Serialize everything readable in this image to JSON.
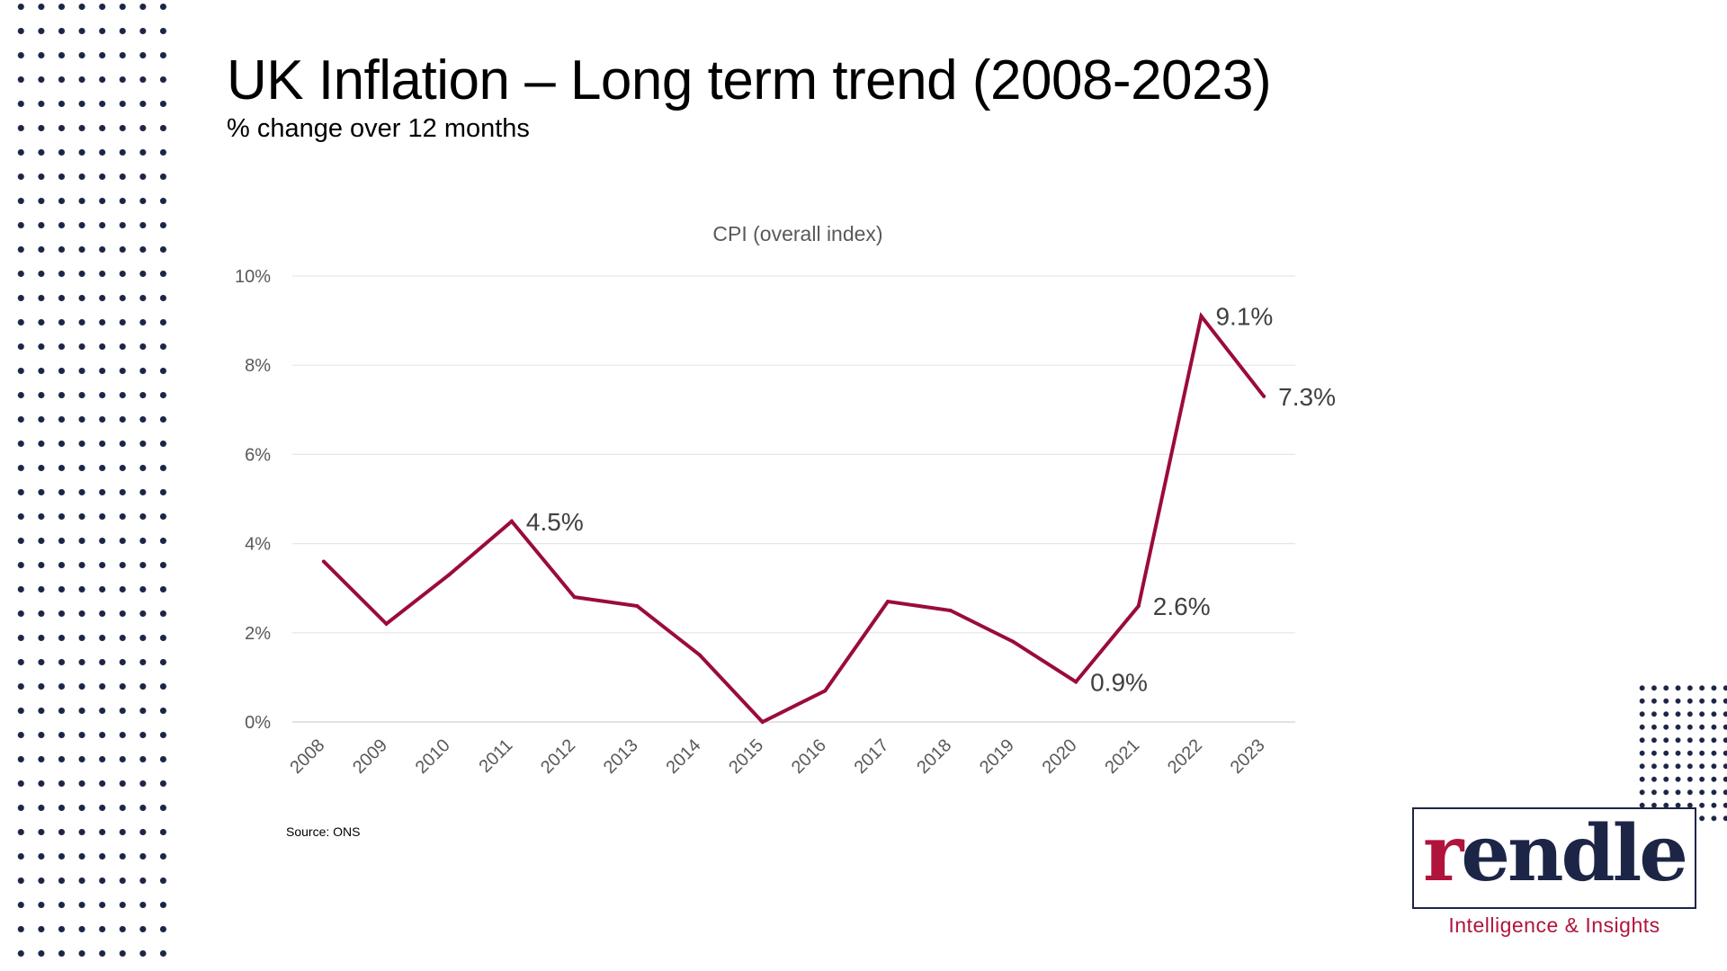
{
  "title": "UK Inflation – Long term trend (2008-2023)",
  "subtitle": "% change over 12 months",
  "source": "Source: ONS",
  "logo": {
    "wordmark": "rendle",
    "tagline": "Intelligence & Insights"
  },
  "colors": {
    "series": "#9b0b3d",
    "brand_navy": "#1d2547",
    "brand_red": "#b0143c",
    "grid": "#e6e6e6",
    "axis_text": "#595959"
  },
  "chart_data": {
    "type": "line",
    "title": "CPI (overall index)",
    "xlabel": "",
    "ylabel": "",
    "ylim": [
      0,
      10
    ],
    "yticks": [
      "0%",
      "2%",
      "4%",
      "6%",
      "8%",
      "10%"
    ],
    "categories": [
      "2008",
      "2009",
      "2010",
      "2011",
      "2012",
      "2013",
      "2014",
      "2015",
      "2016",
      "2017",
      "2018",
      "2019",
      "2020",
      "2021",
      "2022",
      "2023"
    ],
    "series": [
      {
        "name": "CPI (overall index)",
        "values": [
          3.6,
          2.2,
          3.3,
          4.5,
          2.8,
          2.6,
          1.5,
          0.0,
          0.7,
          2.7,
          2.5,
          1.8,
          0.9,
          2.6,
          9.1,
          7.3
        ]
      }
    ],
    "data_labels": [
      {
        "category": "2011",
        "text": "4.5%"
      },
      {
        "category": "2020",
        "text": "0.9%"
      },
      {
        "category": "2021",
        "text": "2.6%"
      },
      {
        "category": "2022",
        "text": "9.1%"
      },
      {
        "category": "2023",
        "text": "7.3%"
      }
    ],
    "grid": true,
    "legend": "none"
  }
}
